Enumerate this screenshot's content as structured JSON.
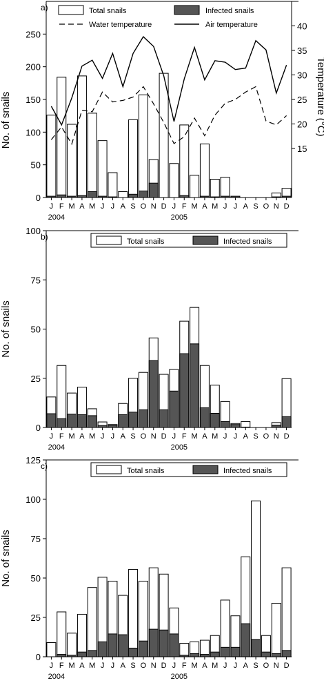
{
  "chart_data": [
    {
      "type": "bar",
      "panel_label": "a)",
      "x_months": [
        "J",
        "F",
        "M",
        "A",
        "M",
        "J",
        "J",
        "A",
        "S",
        "O",
        "N",
        "D",
        "J",
        "F",
        "M",
        "A",
        "M",
        "J",
        "J",
        "A",
        "S",
        "O",
        "N",
        "D"
      ],
      "year_labels": [
        "2004",
        "2005"
      ],
      "ylabel": "No. of snails",
      "ylim": [
        0,
        300
      ],
      "yticks": [
        0,
        50,
        100,
        150,
        200,
        250
      ],
      "y2label": "Temperature (°C)",
      "y2lim": [
        5,
        45
      ],
      "y2ticks": [
        15,
        20,
        25,
        30,
        35,
        40
      ],
      "legend": [
        "Total snails",
        "Infected snails",
        "Water temperature",
        "Air temperature"
      ],
      "series": [
        {
          "name": "Total snails",
          "kind": "bar",
          "color": "#ffffff",
          "values": [
            126,
            184,
            112,
            186,
            129,
            87,
            38,
            9,
            119,
            157,
            58,
            190,
            52,
            111,
            34,
            82,
            28,
            31,
            0,
            0,
            0,
            0,
            7,
            14
          ]
        },
        {
          "name": "Infected snails",
          "kind": "bar",
          "color": "#555555",
          "values": [
            2,
            4,
            2,
            3,
            9,
            2,
            1,
            0,
            5,
            10,
            22,
            0,
            0,
            3,
            0,
            2,
            1,
            2,
            2,
            0,
            0,
            0,
            1,
            2
          ]
        },
        {
          "name": "Water temperature",
          "kind": "line",
          "dash": true,
          "values": [
            16.8,
            19.4,
            15.9,
            22.8,
            22.5,
            26.5,
            24.5,
            24.8,
            25.5,
            27.6,
            24.1,
            20.3,
            16.0,
            17.4,
            21.2,
            17.6,
            21.8,
            24.2,
            25.0,
            26.5,
            27.6,
            20.6,
            19.8,
            21.7
          ]
        },
        {
          "name": "Air temperature",
          "kind": "line",
          "dash": false,
          "values": [
            23.6,
            19.8,
            25.3,
            31.8,
            33.0,
            29.3,
            34.4,
            27.6,
            34.4,
            37.8,
            35.8,
            29.8,
            20.5,
            29.2,
            35.6,
            29.0,
            32.9,
            32.6,
            31.1,
            31.4,
            37.0,
            35.1,
            26.3,
            32.0
          ]
        }
      ]
    },
    {
      "type": "bar",
      "panel_label": "b)",
      "x_months": [
        "J",
        "F",
        "M",
        "A",
        "M",
        "J",
        "J",
        "A",
        "S",
        "O",
        "N",
        "D",
        "J",
        "F",
        "M",
        "A",
        "M",
        "J",
        "J",
        "A",
        "S",
        "O",
        "N",
        "D"
      ],
      "year_labels": [
        "2004",
        "2005"
      ],
      "ylabel": "No. of snails",
      "ylim": [
        0,
        100
      ],
      "yticks": [
        0,
        25,
        50,
        75,
        100
      ],
      "legend": [
        "Total snails",
        "Infected snails"
      ],
      "series": [
        {
          "name": "Total snails",
          "values": [
            15.5,
            31.5,
            17.5,
            20.5,
            9.5,
            2.8,
            1.5,
            12.2,
            25.0,
            28.0,
            45.5,
            27.0,
            29.5,
            54.0,
            61.0,
            31.5,
            21.5,
            13.2,
            2.0,
            3.0,
            0,
            0,
            2.5,
            24.8
          ]
        },
        {
          "name": "Infected snails",
          "values": [
            7.0,
            4.5,
            6.8,
            6.5,
            6.0,
            1.0,
            1.0,
            6.5,
            7.8,
            9.0,
            34.0,
            9.0,
            18.5,
            37.5,
            42.5,
            10.0,
            7.2,
            3.0,
            1.5,
            0.2,
            0,
            0,
            1.2,
            5.5
          ]
        }
      ]
    },
    {
      "type": "bar",
      "panel_label": "c)",
      "x_months": [
        "J",
        "F",
        "M",
        "A",
        "M",
        "J",
        "J",
        "A",
        "S",
        "O",
        "N",
        "D",
        "J",
        "F",
        "M",
        "A",
        "M",
        "J",
        "J",
        "A",
        "S",
        "O",
        "N",
        "D"
      ],
      "year_labels": [
        "2004",
        "2005"
      ],
      "ylabel": "No. of snails",
      "ylim": [
        0,
        125
      ],
      "yticks": [
        0,
        25,
        50,
        75,
        100,
        125
      ],
      "legend": [
        "Total snails",
        "Infected snails"
      ],
      "series": [
        {
          "name": "Total snails",
          "values": [
            9.0,
            28.5,
            15.0,
            27.0,
            44.0,
            50.5,
            48.0,
            39.0,
            55.5,
            48.0,
            56.5,
            52.5,
            31.0,
            8.5,
            9.5,
            10.5,
            13.5,
            36.0,
            26.0,
            63.5,
            99.0,
            13.5,
            34.0,
            56.5
          ]
        },
        {
          "name": "Infected snails",
          "values": [
            0,
            1.5,
            1.0,
            3.0,
            4.0,
            9.5,
            14.5,
            14.0,
            5.5,
            10.0,
            17.5,
            17.0,
            14.5,
            1.0,
            2.0,
            1.5,
            3.0,
            6.0,
            6.0,
            21.0,
            11.0,
            3.0,
            2.0,
            4.0
          ]
        }
      ]
    }
  ]
}
